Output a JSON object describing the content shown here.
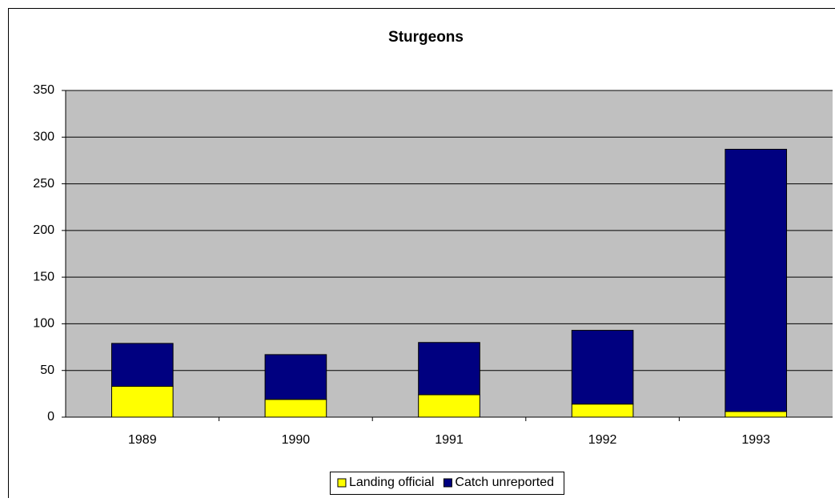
{
  "chart_data": {
    "type": "stacked_bar",
    "title": "Sturgeons",
    "categories": [
      "1989",
      "1990",
      "1991",
      "1992",
      "1993"
    ],
    "series": [
      {
        "name": "Landing official",
        "color": "#ffff00",
        "values": [
          33,
          19,
          24,
          14,
          6
        ]
      },
      {
        "name": "Catch unreported",
        "color": "#000080",
        "values": [
          46,
          48,
          56,
          79,
          281
        ]
      }
    ],
    "ylim": [
      0,
      350
    ],
    "yticks": [
      0,
      50,
      100,
      150,
      200,
      250,
      300,
      350
    ],
    "grid": true,
    "legend": "bottom"
  }
}
